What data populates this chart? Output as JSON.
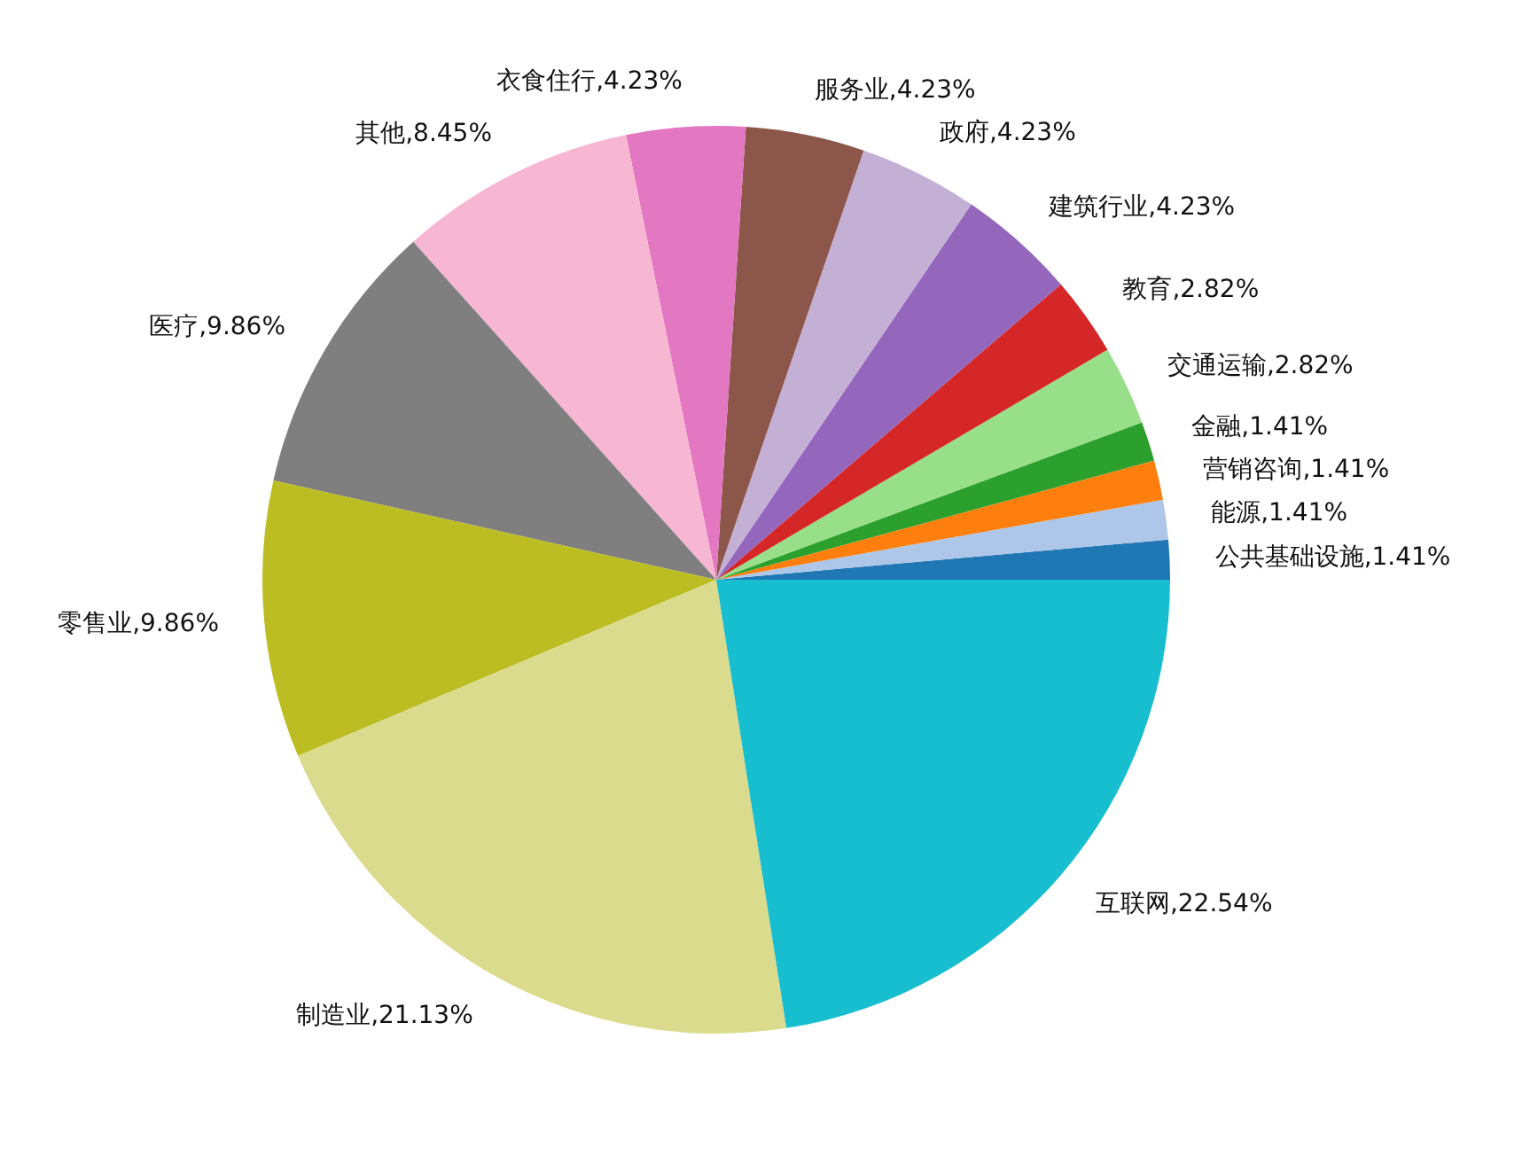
{
  "chart_data": {
    "type": "pie",
    "categories": [
      "公共基础设施",
      "能源",
      "营销咨询",
      "金融",
      "交通运输",
      "教育",
      "建筑行业",
      "政府",
      "服务业",
      "衣食住行",
      "其他",
      "医疗",
      "零售业",
      "制造业",
      "互联网"
    ],
    "values": [
      1.41,
      1.41,
      1.41,
      1.41,
      2.82,
      2.82,
      4.23,
      4.23,
      4.23,
      4.23,
      8.45,
      9.86,
      9.86,
      21.13,
      22.54
    ],
    "value_labels": [
      "1.41%",
      "1.41%",
      "1.41%",
      "1.41%",
      "2.82%",
      "2.82%",
      "4.23%",
      "4.23%",
      "4.23%",
      "4.23%",
      "8.45%",
      "9.86%",
      "9.86%",
      "21.13%",
      "22.54%"
    ],
    "colors": [
      "#1f77b4",
      "#aec7e8",
      "#ff7f0e",
      "#2ca02c",
      "#98df8a",
      "#d62728",
      "#9467bd",
      "#c5b0d5",
      "#8c564b",
      "#e377c2",
      "#f7b6d2",
      "#7f7f7f",
      "#bcbd22",
      "#dbdb8d",
      "#17becf"
    ]
  }
}
